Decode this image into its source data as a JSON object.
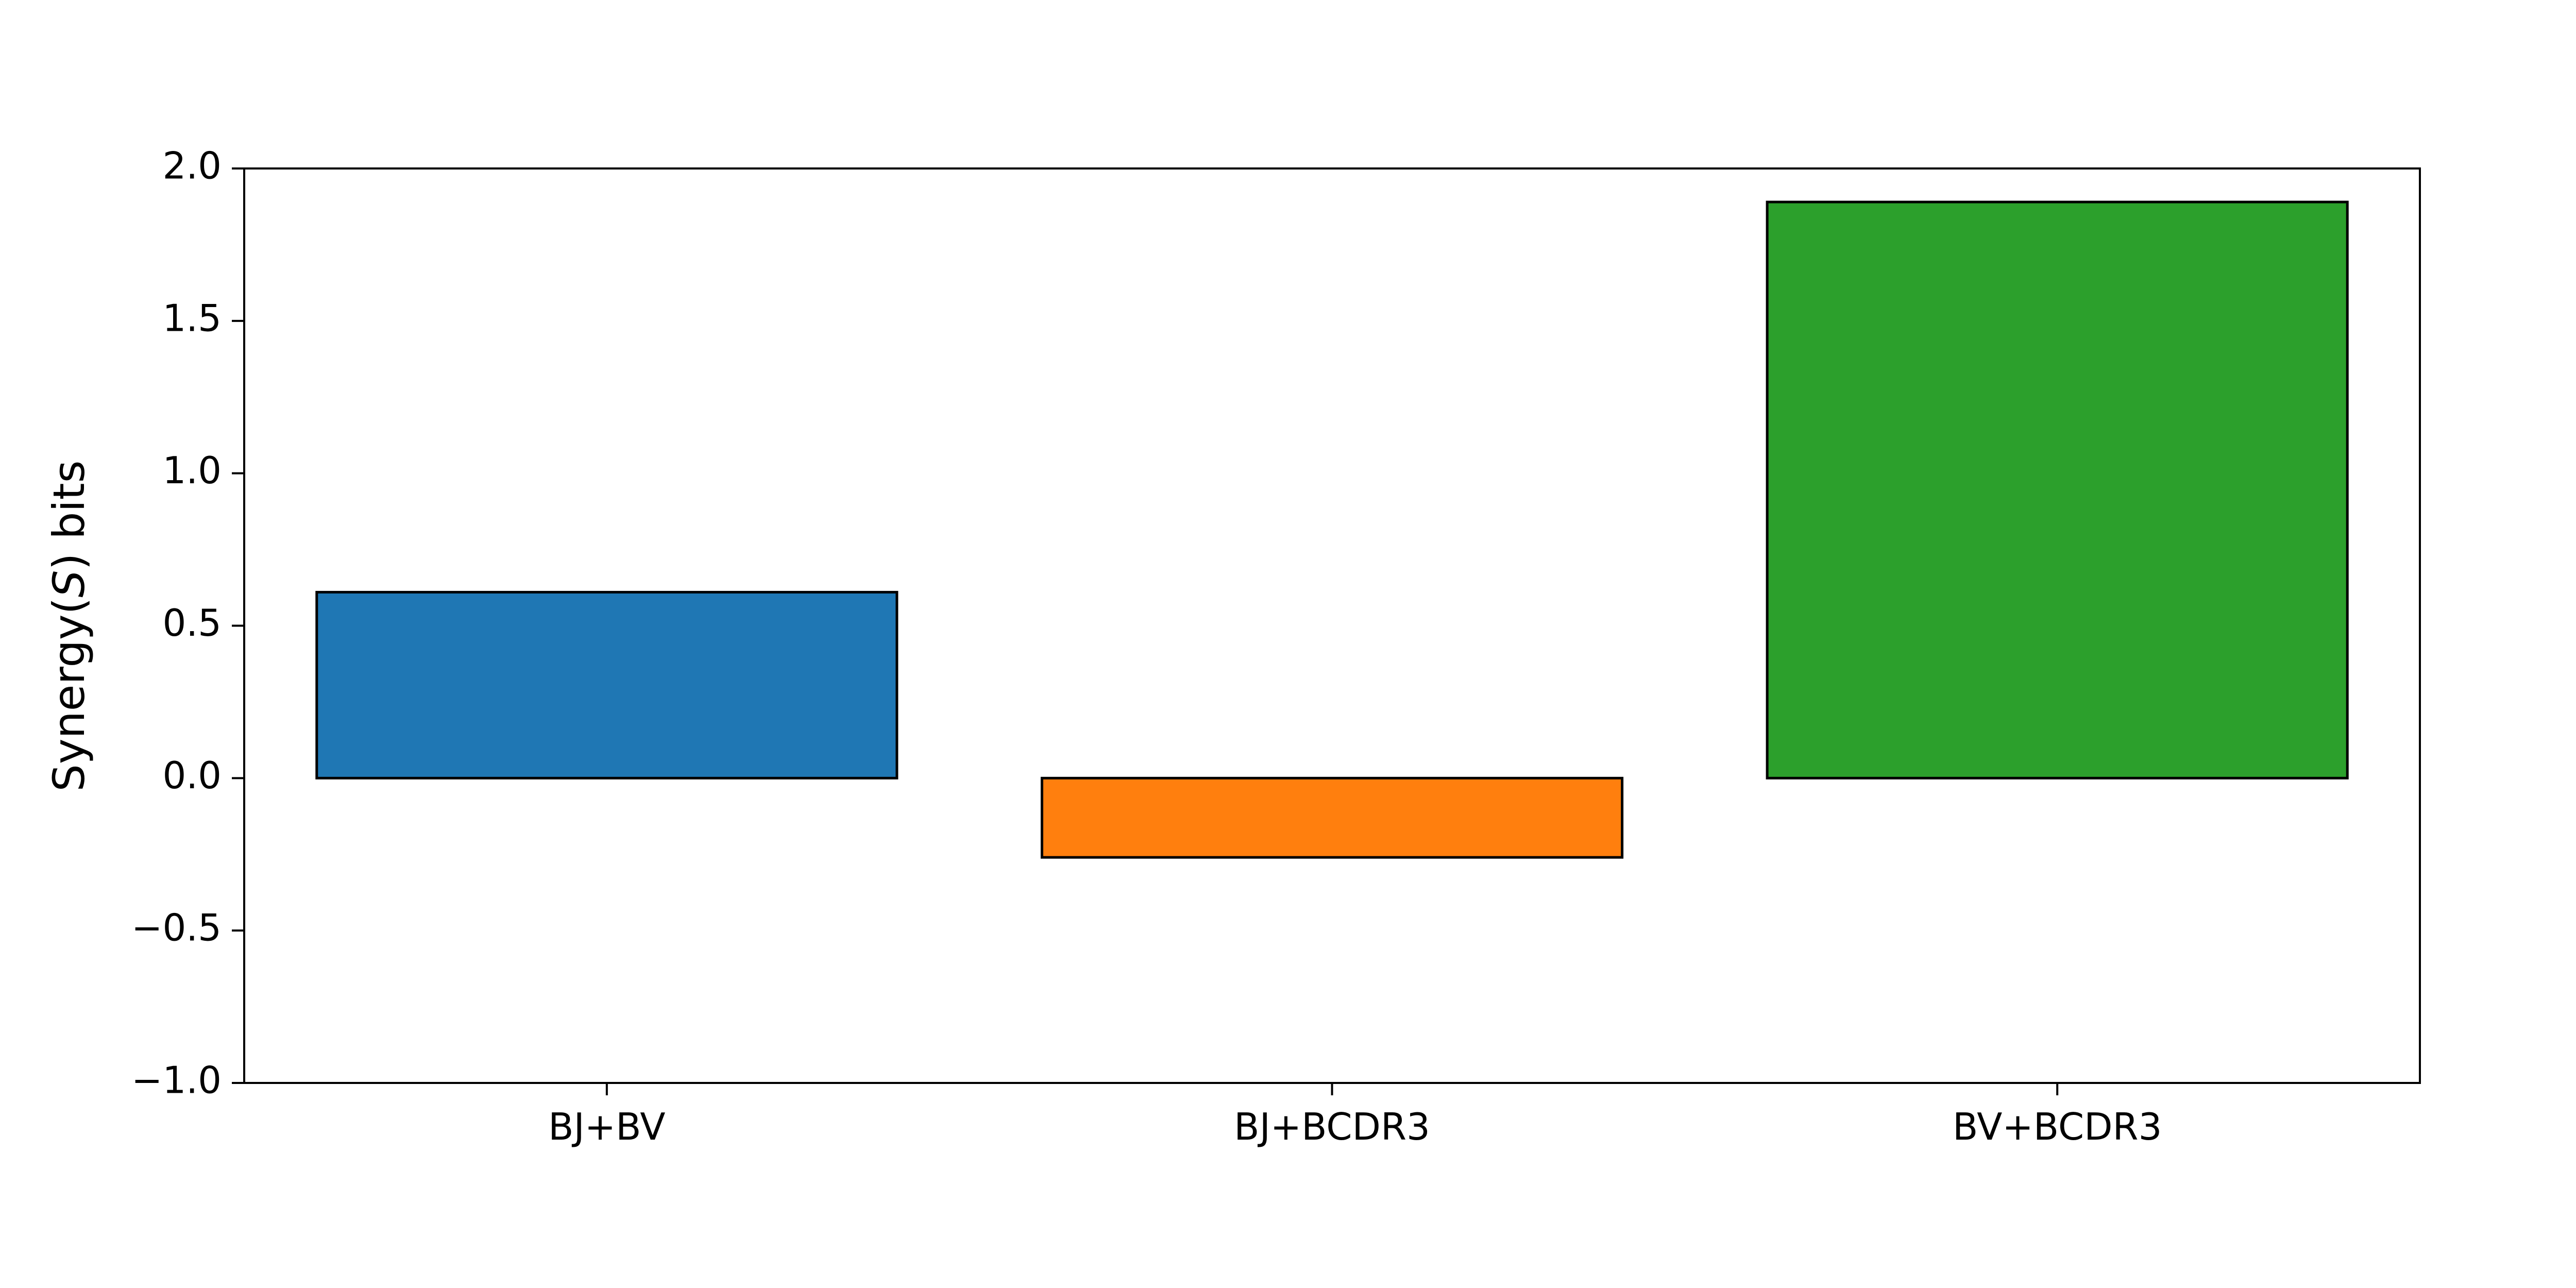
{
  "chart_data": {
    "type": "bar",
    "title": "",
    "xlabel": "",
    "ylabel_prefix": "Synergy(",
    "ylabel_symbol": "S",
    "ylabel_suffix": ") bits",
    "categories": [
      "BJ+BV",
      "BJ+BCDR3",
      "BV+BCDR3"
    ],
    "values": [
      0.61,
      -0.26,
      1.89
    ],
    "colors": [
      "#1f77b4",
      "#ff7f0e",
      "#2ca02c"
    ],
    "edge_color": "#000000",
    "ylim": [
      -1.0,
      2.0
    ],
    "yticks": [
      -1.0,
      -0.5,
      0.0,
      0.5,
      1.0,
      1.5,
      2.0
    ],
    "ytick_labels": [
      "−1.0",
      "−0.5",
      "0.0",
      "0.5",
      "1.0",
      "1.5",
      "2.0"
    ],
    "grid": false,
    "legend": "none"
  }
}
